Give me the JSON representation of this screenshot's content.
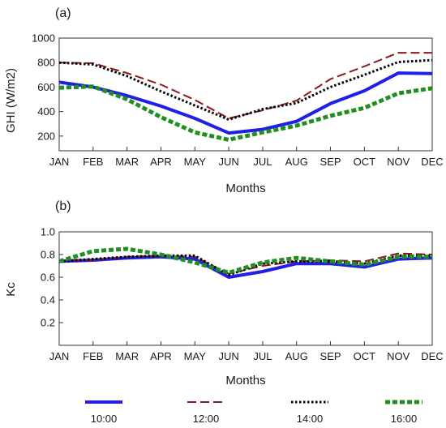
{
  "chart_data": [
    {
      "type": "line",
      "panel_label": "(a)",
      "categories": [
        "JAN",
        "FEB",
        "MAR",
        "APR",
        "MAY",
        "JUN",
        "JUL",
        "AUG",
        "SEP",
        "OCT",
        "NOV",
        "DEC"
      ],
      "xlabel": "Months",
      "ylabel": "GHI (W/m2)",
      "ylim": [
        80,
        1000
      ],
      "yticks": [
        200,
        400,
        600,
        800,
        1000
      ],
      "ytick_labels": [
        "200",
        "400",
        "600",
        "800",
        "1000"
      ],
      "grid": false,
      "series": [
        {
          "name": "10:00",
          "color": "#1f1fe6",
          "style": "solid",
          "values": [
            640,
            600,
            530,
            445,
            345,
            225,
            255,
            320,
            465,
            570,
            715,
            710
          ]
        },
        {
          "name": "12:00",
          "color": "#8b1a1a",
          "style": "longdash",
          "values": [
            800,
            795,
            715,
            620,
            495,
            345,
            410,
            490,
            665,
            770,
            880,
            880
          ]
        },
        {
          "name": "14:00",
          "color": "#000000",
          "style": "dotted",
          "values": [
            800,
            785,
            690,
            565,
            450,
            335,
            420,
            470,
            600,
            700,
            805,
            820
          ]
        },
        {
          "name": "16:00",
          "color": "#1f8f1f",
          "style": "dashed",
          "values": [
            595,
            605,
            500,
            355,
            230,
            170,
            230,
            285,
            365,
            430,
            550,
            590
          ]
        }
      ]
    },
    {
      "type": "line",
      "panel_label": "(b)",
      "categories": [
        "JAN",
        "FEB",
        "MAR",
        "APR",
        "MAY",
        "JUN",
        "JUL",
        "AUG",
        "SEP",
        "OCT",
        "NOV",
        "DEC"
      ],
      "xlabel": "Months",
      "ylabel": "Kc",
      "ylim": [
        0,
        1.0
      ],
      "yticks": [
        0.2,
        0.4,
        0.6,
        0.8,
        1.0
      ],
      "ytick_labels": [
        "0.2",
        "0.4",
        "0.6",
        "0.8",
        "1.0"
      ],
      "grid": false,
      "series": [
        {
          "name": "10:00",
          "color": "#1f1fe6",
          "style": "solid",
          "values": [
            0.74,
            0.75,
            0.77,
            0.78,
            0.76,
            0.6,
            0.65,
            0.72,
            0.72,
            0.69,
            0.76,
            0.77
          ]
        },
        {
          "name": "12:00",
          "color": "#8b1a1a",
          "style": "longdash",
          "values": [
            0.74,
            0.75,
            0.78,
            0.79,
            0.78,
            0.63,
            0.7,
            0.74,
            0.75,
            0.74,
            0.81,
            0.8
          ]
        },
        {
          "name": "14:00",
          "color": "#000000",
          "style": "dotted",
          "values": [
            0.74,
            0.76,
            0.78,
            0.79,
            0.79,
            0.62,
            0.72,
            0.74,
            0.74,
            0.72,
            0.79,
            0.79
          ]
        },
        {
          "name": "16:00",
          "color": "#1f8f1f",
          "style": "dashed",
          "values": [
            0.74,
            0.83,
            0.85,
            0.8,
            0.73,
            0.64,
            0.73,
            0.77,
            0.74,
            0.71,
            0.78,
            0.78
          ]
        }
      ]
    }
  ],
  "legend": {
    "placement": "bottom",
    "items": [
      "10:00",
      "12:00",
      "14:00",
      "16:00"
    ]
  }
}
